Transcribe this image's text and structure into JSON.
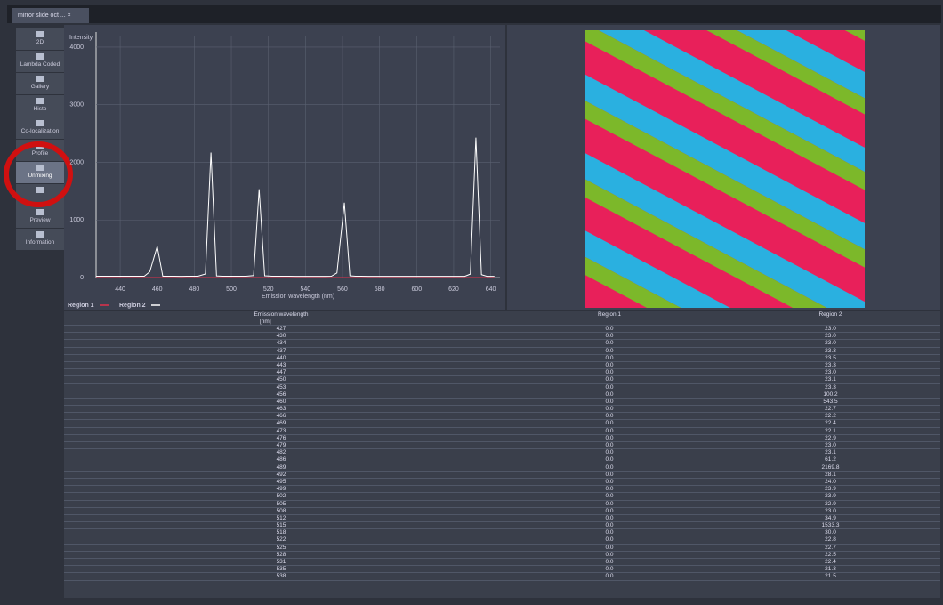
{
  "tab": {
    "title": "mirror slide oct ...",
    "close": "×"
  },
  "sidebar": [
    {
      "label": "2D"
    },
    {
      "label": "Lambda Coded"
    },
    {
      "label": "Gallery"
    },
    {
      "label": "Histo"
    },
    {
      "label": "Co-localization"
    },
    {
      "label": "Profile"
    },
    {
      "label": "Unmixing",
      "selected": true
    },
    {
      "label": null
    },
    {
      "label": "Preview"
    },
    {
      "label": "Information"
    }
  ],
  "chart": {
    "type": "line",
    "y_label": "Intensity",
    "x_label": "Emission wavelength (nm)",
    "x": [
      427,
      430,
      434,
      437,
      440,
      443,
      447,
      450,
      453,
      456,
      460,
      463,
      466,
      469,
      473,
      476,
      479,
      482,
      486,
      489,
      492,
      495,
      499,
      502,
      505,
      508,
      512,
      515,
      518,
      522,
      525,
      528,
      531,
      535,
      538,
      541,
      544,
      548,
      551,
      554,
      557,
      561,
      564,
      567,
      570,
      574,
      577,
      580,
      583,
      587,
      590,
      593,
      596,
      600,
      603,
      606,
      609,
      613,
      616,
      619,
      622,
      626,
      629,
      632,
      635,
      638,
      642
    ],
    "series": [
      {
        "name": "Region 1",
        "color": "#e0304a",
        "values": [
          0,
          0,
          0,
          0,
          0,
          0,
          0,
          0,
          0,
          0,
          0,
          0,
          0,
          0,
          0,
          0,
          0,
          0,
          0,
          0,
          0,
          0,
          0,
          0,
          0,
          0,
          0,
          0,
          0,
          0,
          0,
          0,
          0,
          0,
          0,
          0,
          0,
          0,
          0,
          0,
          0,
          0,
          0,
          0,
          0,
          0,
          0,
          0,
          0,
          0,
          0,
          0,
          0,
          0,
          0,
          0,
          0,
          0,
          0,
          0,
          0,
          0,
          0,
          0,
          0,
          0,
          0
        ]
      },
      {
        "name": "Region 2",
        "color": "#ffffff",
        "values": [
          23.0,
          23.0,
          23.0,
          23.3,
          23.5,
          23.3,
          23.0,
          23.1,
          23.3,
          100.2,
          543.5,
          22.7,
          22.2,
          22.4,
          22.1,
          22.9,
          23.0,
          23.1,
          61.2,
          2169.8,
          28.1,
          24.0,
          23.9,
          23.9,
          22.9,
          23.0,
          34.9,
          1533.3,
          30.0,
          22.8,
          22.7,
          22.5,
          22.4,
          21.3,
          21.5,
          21.6,
          21.8,
          22.0,
          22.1,
          23.0,
          80,
          1300,
          30,
          22.5,
          22.3,
          22.0,
          21.8,
          21.7,
          21.6,
          21.5,
          21.4,
          21.4,
          21.3,
          21.2,
          21.2,
          21.1,
          21.1,
          21.0,
          21.0,
          21.0,
          21.1,
          22,
          60,
          2430,
          50,
          22,
          21
        ]
      }
    ],
    "xlim": [
      427,
      645
    ],
    "xticks": [
      440,
      460,
      480,
      500,
      520,
      540,
      560,
      580,
      600,
      620,
      640
    ],
    "ylim": [
      0,
      4200
    ],
    "yticks": [
      0,
      1000,
      2000,
      3000,
      4000
    ],
    "grid": true
  },
  "table": {
    "header": [
      "Emission wavelength",
      "Region 1",
      "Region 2"
    ],
    "unit": "[nm]",
    "rows": [
      [
        "427",
        "0.0",
        "23.0"
      ],
      [
        "430",
        "0.0",
        "23.0"
      ],
      [
        "434",
        "0.0",
        "23.0"
      ],
      [
        "437",
        "0.0",
        "23.3"
      ],
      [
        "440",
        "0.0",
        "23.5"
      ],
      [
        "443",
        "0.0",
        "23.3"
      ],
      [
        "447",
        "0.0",
        "23.0"
      ],
      [
        "450",
        "0.0",
        "23.1"
      ],
      [
        "453",
        "0.0",
        "23.3"
      ],
      [
        "456",
        "0.0",
        "100.2"
      ],
      [
        "460",
        "0.0",
        "543.5"
      ],
      [
        "463",
        "0.0",
        "22.7"
      ],
      [
        "466",
        "0.0",
        "22.2"
      ],
      [
        "469",
        "0.0",
        "22.4"
      ],
      [
        "473",
        "0.0",
        "22.1"
      ],
      [
        "476",
        "0.0",
        "22.9"
      ],
      [
        "479",
        "0.0",
        "23.0"
      ],
      [
        "482",
        "0.0",
        "23.1"
      ],
      [
        "486",
        "0.0",
        "61.2"
      ],
      [
        "489",
        "0.0",
        "2169.8"
      ],
      [
        "492",
        "0.0",
        "28.1"
      ],
      [
        "495",
        "0.0",
        "24.0"
      ],
      [
        "499",
        "0.0",
        "23.9"
      ],
      [
        "502",
        "0.0",
        "23.9"
      ],
      [
        "505",
        "0.0",
        "22.9"
      ],
      [
        "508",
        "0.0",
        "23.0"
      ],
      [
        "512",
        "0.0",
        "34.9"
      ],
      [
        "515",
        "0.0",
        "1533.3"
      ],
      [
        "518",
        "0.0",
        "30.0"
      ],
      [
        "522",
        "0.0",
        "22.8"
      ],
      [
        "525",
        "0.0",
        "22.7"
      ],
      [
        "528",
        "0.0",
        "22.5"
      ],
      [
        "531",
        "0.0",
        "22.4"
      ],
      [
        "535",
        "0.0",
        "21.3"
      ],
      [
        "538",
        "0.0",
        "21.5"
      ]
    ]
  }
}
